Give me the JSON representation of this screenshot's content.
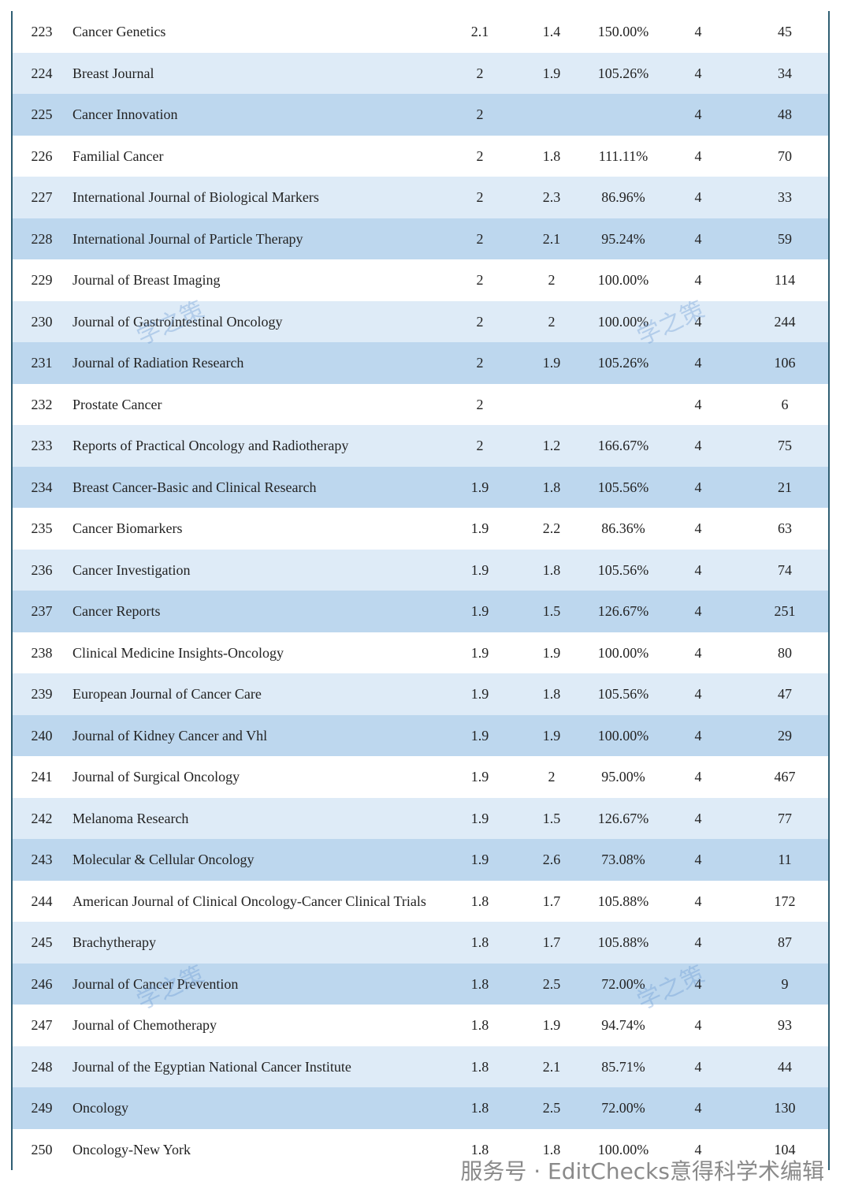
{
  "table": {
    "rows": [
      [
        223,
        "Cancer Genetics",
        2.1,
        1.4,
        "150.00%",
        4,
        45
      ],
      [
        224,
        "Breast Journal",
        2,
        1.9,
        "105.26%",
        4,
        34
      ],
      [
        225,
        "Cancer Innovation",
        2,
        null,
        null,
        4,
        48
      ],
      [
        226,
        "Familial Cancer",
        2,
        1.8,
        "111.11%",
        4,
        70
      ],
      [
        227,
        "International Journal of Biological Markers",
        2,
        2.3,
        "86.96%",
        4,
        33
      ],
      [
        228,
        "International Journal of Particle Therapy",
        2,
        2.1,
        "95.24%",
        4,
        59
      ],
      [
        229,
        "Journal of Breast Imaging",
        2,
        2,
        "100.00%",
        4,
        114
      ],
      [
        230,
        "Journal of Gastrointestinal Oncology",
        2,
        2,
        "100.00%",
        4,
        244
      ],
      [
        231,
        "Journal of Radiation Research",
        2,
        1.9,
        "105.26%",
        4,
        106
      ],
      [
        232,
        "Prostate Cancer",
        2,
        null,
        null,
        4,
        6
      ],
      [
        233,
        "Reports of Practical Oncology and Radiotherapy",
        2,
        1.2,
        "166.67%",
        4,
        75
      ],
      [
        234,
        "Breast Cancer-Basic and Clinical Research",
        1.9,
        1.8,
        "105.56%",
        4,
        21
      ],
      [
        235,
        "Cancer Biomarkers",
        1.9,
        2.2,
        "86.36%",
        4,
        63
      ],
      [
        236,
        "Cancer Investigation",
        1.9,
        1.8,
        "105.56%",
        4,
        74
      ],
      [
        237,
        "Cancer Reports",
        1.9,
        1.5,
        "126.67%",
        4,
        251
      ],
      [
        238,
        "Clinical Medicine Insights-Oncology",
        1.9,
        1.9,
        "100.00%",
        4,
        80
      ],
      [
        239,
        "European Journal of Cancer Care",
        1.9,
        1.8,
        "105.56%",
        4,
        47
      ],
      [
        240,
        "Journal of Kidney Cancer and Vhl",
        1.9,
        1.9,
        "100.00%",
        4,
        29
      ],
      [
        241,
        "Journal of Surgical Oncology",
        1.9,
        2,
        "95.00%",
        4,
        467
      ],
      [
        242,
        "Melanoma Research",
        1.9,
        1.5,
        "126.67%",
        4,
        77
      ],
      [
        243,
        "Molecular & Cellular Oncology",
        1.9,
        2.6,
        "73.08%",
        4,
        11
      ],
      [
        244,
        "American Journal of Clinical Oncology-Cancer Clinical Trials",
        1.8,
        1.7,
        "105.88%",
        4,
        172
      ],
      [
        245,
        "Brachytherapy",
        1.8,
        1.7,
        "105.88%",
        4,
        87
      ],
      [
        246,
        "Journal of Cancer Prevention",
        1.8,
        2.5,
        "72.00%",
        4,
        9
      ],
      [
        247,
        "Journal of Chemotherapy",
        1.8,
        1.9,
        "94.74%",
        4,
        93
      ],
      [
        248,
        "Journal of the Egyptian National Cancer Institute",
        1.8,
        2.1,
        "85.71%",
        4,
        44
      ],
      [
        249,
        "Oncology",
        1.8,
        2.5,
        "72.00%",
        4,
        130
      ],
      [
        250,
        "Oncology-New York",
        1.8,
        1.8,
        "100.00%",
        4,
        104
      ]
    ]
  },
  "watermark": "学之策",
  "footer": "服务号 · EditChecks意得科学术编辑"
}
